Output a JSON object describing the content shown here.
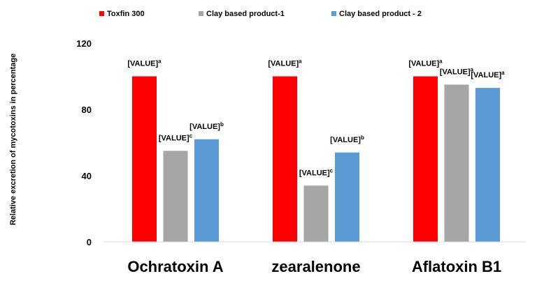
{
  "chart_data": {
    "type": "bar",
    "ylabel": "Relative excretion of mycotoxins in percentage",
    "xlabel": "",
    "ylim": [
      0,
      120
    ],
    "yticks": [
      0,
      40,
      80,
      120
    ],
    "grid": false,
    "legend_position": "top",
    "categories": [
      "Ochratoxin A",
      "zearalenone",
      "Aflatoxin B1"
    ],
    "series": [
      {
        "name": "Toxfin 300",
        "color": "#ff0000",
        "values": [
          100,
          100,
          100
        ],
        "labels": [
          "[VALUE]",
          "[VALUE]",
          "[VALUE]"
        ],
        "letters": [
          "a",
          "a",
          "a"
        ]
      },
      {
        "name": "Clay based product-1",
        "color": "#a6a6a6",
        "values": [
          55,
          34,
          95
        ],
        "labels": [
          "[VALUE]",
          "[VALUE]",
          "[VALUE]"
        ],
        "letters": [
          "c",
          "c",
          "a"
        ]
      },
      {
        "name": "Clay based product - 2",
        "color": "#5b9bd5",
        "values": [
          62,
          54,
          93
        ],
        "labels": [
          "[VALUE]",
          "[VALUE]",
          "[VALUE]"
        ],
        "letters": [
          "b",
          "b",
          "a"
        ]
      }
    ]
  }
}
